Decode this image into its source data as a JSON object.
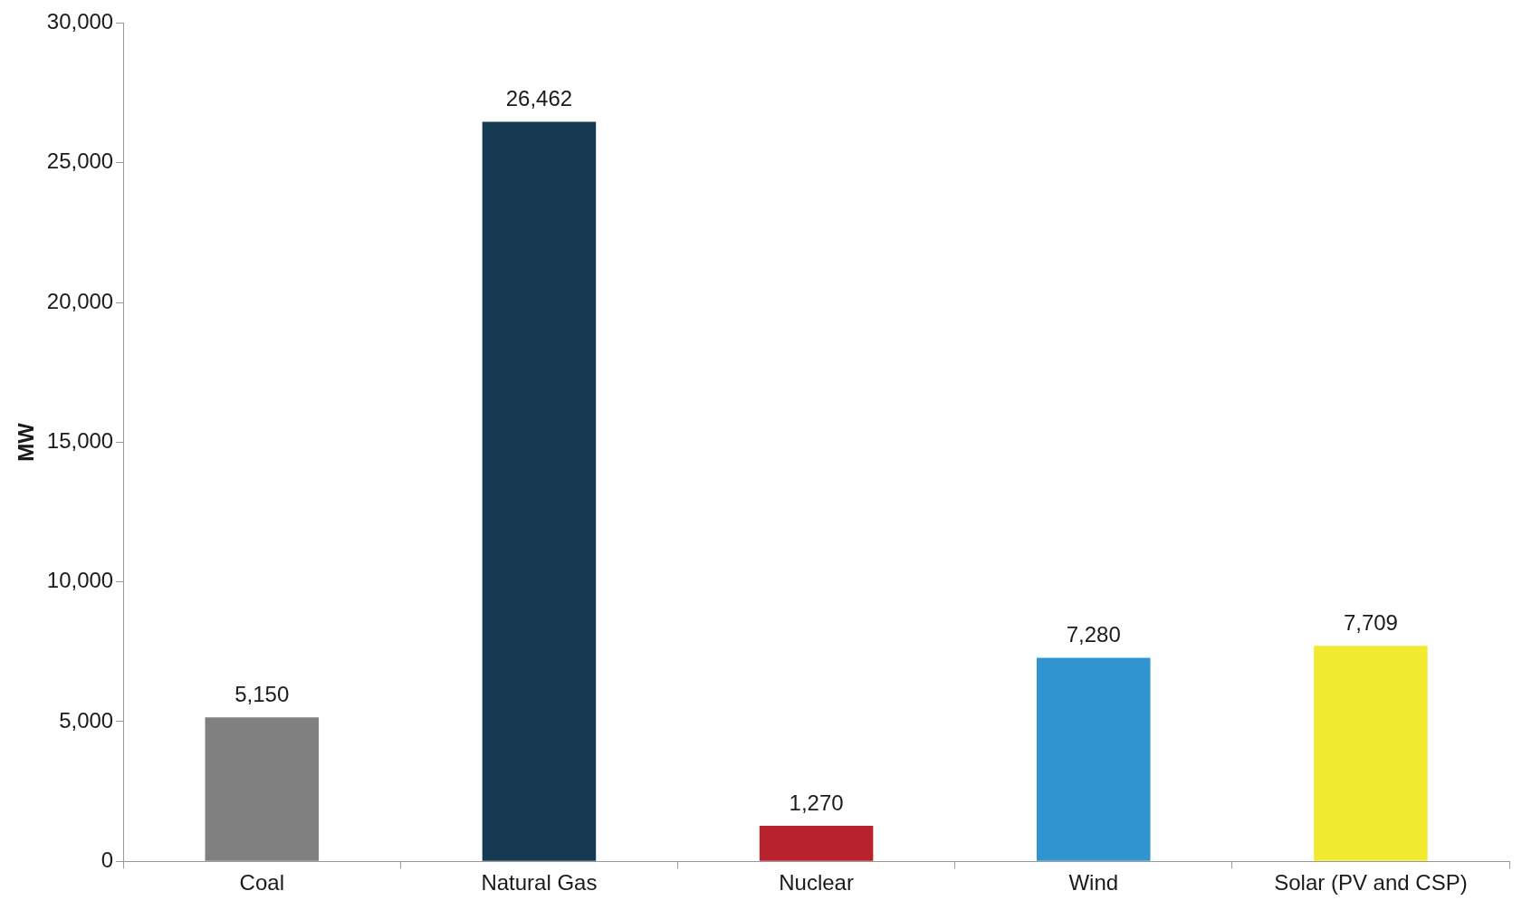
{
  "chart_data": {
    "type": "bar",
    "ylabel": "MW",
    "categories": [
      "Coal",
      "Natural Gas",
      "Nuclear",
      "Wind",
      "Solar (PV and CSP)"
    ],
    "values": [
      5150,
      26462,
      1270,
      7280,
      7709
    ],
    "value_labels": [
      "5,150",
      "26,462",
      "1,270",
      "7,280",
      "7,709"
    ],
    "colors": [
      "#808080",
      "#153a52",
      "#b8222c",
      "#3094d1",
      "#f0ea30"
    ],
    "ylim": [
      0,
      30000
    ],
    "yticks": [
      0,
      {
        "value": 5000,
        "label": "5,000"
      },
      {
        "value": 10000,
        "label": "10,000"
      },
      {
        "value": 15000,
        "label": "15,000"
      },
      {
        "value": 20000,
        "label": "20,000"
      },
      {
        "value": 25000,
        "label": "25,000"
      },
      {
        "value": 30000,
        "label": "30,000"
      }
    ],
    "grid": false,
    "legend": false
  }
}
